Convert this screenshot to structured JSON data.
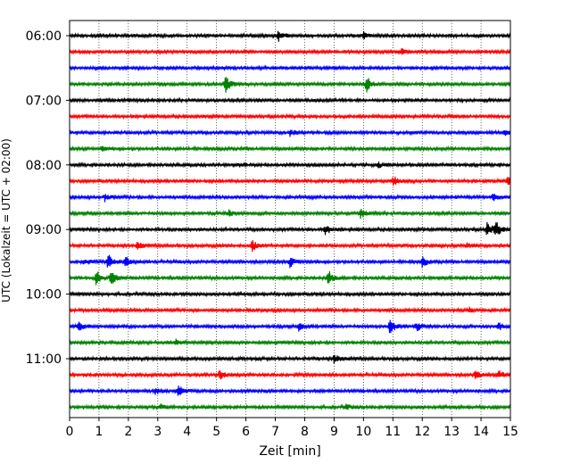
{
  "chart_data": {
    "type": "line",
    "xlabel": "Zeit  [min]",
    "ylabel": "UTC (Lokalzeit = UTC + 02:00)",
    "xlim": [
      0,
      15
    ],
    "x_ticks": [
      "0",
      "1",
      "2",
      "3",
      "4",
      "5",
      "6",
      "7",
      "8",
      "9",
      "10",
      "11",
      "12",
      "13",
      "14",
      "15"
    ],
    "y_ticks": [
      "06:00",
      "07:00",
      "08:00",
      "09:00",
      "10:00",
      "11:00"
    ],
    "grid": "vertical dotted",
    "trace_interval_min": 15,
    "trace_colors": [
      "#000000",
      "#ff0000",
      "#0000ff",
      "#008000"
    ],
    "series": [
      {
        "start": "06:00",
        "events": [
          [
            7.1,
            6
          ],
          [
            10.0,
            4
          ]
        ]
      },
      {
        "start": "06:15",
        "events": [
          [
            11.3,
            4
          ]
        ]
      },
      {
        "start": "06:30",
        "events": []
      },
      {
        "start": "06:45",
        "events": [
          [
            5.3,
            10
          ],
          [
            10.1,
            9
          ]
        ]
      },
      {
        "start": "07:00",
        "events": []
      },
      {
        "start": "07:15",
        "events": []
      },
      {
        "start": "07:30",
        "events": [
          [
            7.5,
            4
          ],
          [
            14.8,
            3
          ]
        ]
      },
      {
        "start": "07:45",
        "events": [
          [
            1.1,
            3
          ]
        ]
      },
      {
        "start": "08:00",
        "events": [
          [
            10.5,
            3
          ]
        ]
      },
      {
        "start": "08:15",
        "events": [
          [
            11.0,
            6
          ],
          [
            14.9,
            5
          ]
        ]
      },
      {
        "start": "08:30",
        "events": [
          [
            1.2,
            4
          ],
          [
            14.4,
            6
          ]
        ]
      },
      {
        "start": "08:45",
        "events": [
          [
            5.4,
            4
          ],
          [
            9.9,
            5
          ]
        ]
      },
      {
        "start": "09:00",
        "events": [
          [
            8.7,
            6
          ],
          [
            14.2,
            9
          ],
          [
            14.5,
            9
          ]
        ]
      },
      {
        "start": "09:15",
        "events": [
          [
            2.3,
            4
          ],
          [
            6.2,
            7
          ],
          [
            13.5,
            3
          ]
        ]
      },
      {
        "start": "09:30",
        "events": [
          [
            0.5,
            4
          ],
          [
            1.3,
            9
          ],
          [
            1.9,
            6
          ],
          [
            7.5,
            6
          ],
          [
            12.0,
            6
          ]
        ]
      },
      {
        "start": "09:45",
        "events": [
          [
            0.9,
            10
          ],
          [
            1.4,
            8
          ],
          [
            8.8,
            9
          ]
        ]
      },
      {
        "start": "10:00",
        "events": []
      },
      {
        "start": "10:15",
        "events": [
          [
            13.6,
            3
          ]
        ]
      },
      {
        "start": "10:30",
        "events": [
          [
            0.3,
            5
          ],
          [
            7.8,
            5
          ],
          [
            10.9,
            10
          ],
          [
            11.8,
            5
          ],
          [
            14.6,
            4
          ]
        ]
      },
      {
        "start": "10:45",
        "events": [
          [
            3.6,
            3
          ]
        ]
      },
      {
        "start": "11:00",
        "events": [
          [
            9.0,
            5
          ]
        ]
      },
      {
        "start": "11:15",
        "events": [
          [
            5.1,
            6
          ],
          [
            13.8,
            5
          ],
          [
            14.6,
            5
          ]
        ]
      },
      {
        "start": "11:30",
        "events": [
          [
            2.9,
            4
          ],
          [
            3.7,
            7
          ]
        ]
      },
      {
        "start": "11:45",
        "events": [
          [
            3.1,
            3
          ],
          [
            9.4,
            3
          ]
        ]
      }
    ]
  }
}
